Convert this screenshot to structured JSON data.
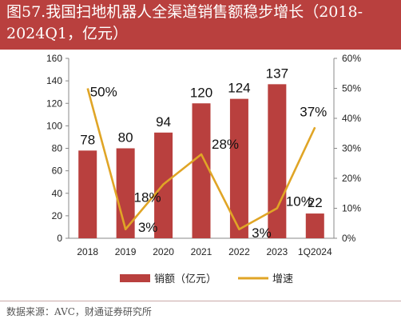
{
  "header": {
    "title": "图57.我国扫地机器人全渠道销售额稳步增长（2018-2024Q1，亿元）"
  },
  "source": {
    "text": "数据来源：AVC，财通证券研究所"
  },
  "colors": {
    "header_bg": "#b9403e",
    "bar": "#b9403e",
    "line": "#e0a526"
  },
  "chart_data": {
    "type": "bar",
    "categories": [
      "2018",
      "2019",
      "2020",
      "2021",
      "2022",
      "2023",
      "1Q2024"
    ],
    "series": [
      {
        "name": "销额（亿元）",
        "type": "bar",
        "axis": "left",
        "values": [
          78,
          80,
          94,
          120,
          124,
          137,
          22
        ],
        "labels": [
          "78",
          "80",
          "94",
          "120",
          "124",
          "137",
          "22"
        ]
      },
      {
        "name": "增速",
        "type": "line",
        "axis": "right",
        "values": [
          50,
          3,
          18,
          28,
          3,
          10,
          37
        ],
        "labels": [
          "50%",
          "3%",
          "18%",
          "28%",
          "3%",
          "10%",
          "37%"
        ]
      }
    ],
    "y_left": {
      "min": 0,
      "max": 160,
      "ticks": [
        "0",
        "20",
        "40",
        "60",
        "80",
        "100",
        "120",
        "140",
        "160"
      ]
    },
    "y_right": {
      "min": 0,
      "max": 60,
      "ticks": [
        "0%",
        "10%",
        "20%",
        "30%",
        "40%",
        "50%",
        "60%"
      ]
    },
    "legend": {
      "position": "bottom",
      "items": [
        "销额（亿元）",
        "增速"
      ]
    },
    "grid": false
  }
}
